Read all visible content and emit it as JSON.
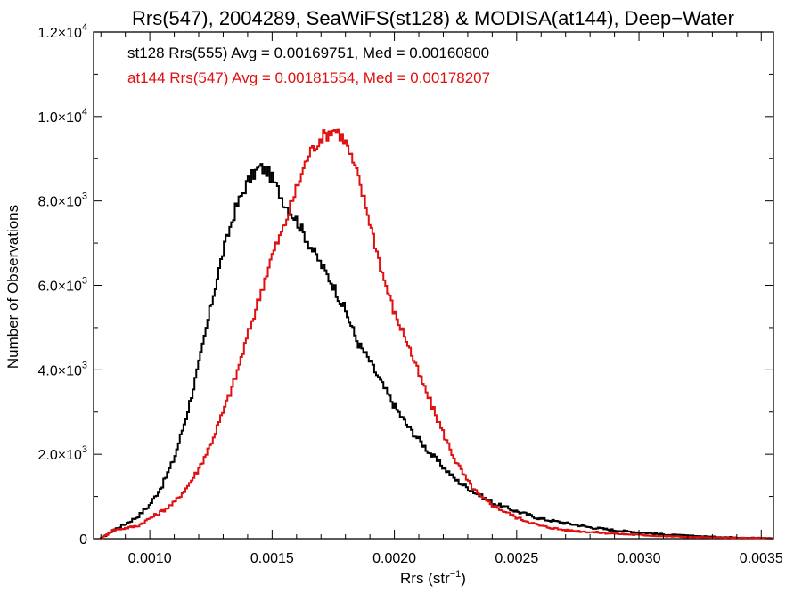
{
  "chart_data": {
    "type": "line",
    "title": "Rrs(547), 2004289, SeaWiFS(st128) & MODISA(at144), Deep−Water",
    "xlabel_main": "Rrs (str",
    "xlabel_sup": "−1",
    "xlabel_tail": ")",
    "ylabel": "Number of Observations",
    "xlim": [
      0.00077,
      0.00355
    ],
    "ylim": [
      0,
      12000
    ],
    "x_ticks": [
      {
        "value": 0.001,
        "label": "0.0010"
      },
      {
        "value": 0.0015,
        "label": "0.0015"
      },
      {
        "value": 0.002,
        "label": "0.0020"
      },
      {
        "value": 0.0025,
        "label": "0.0025"
      },
      {
        "value": 0.003,
        "label": "0.0030"
      },
      {
        "value": 0.0035,
        "label": "0.0035"
      }
    ],
    "y_ticks": [
      {
        "value": 0,
        "mant": "0",
        "exp": ""
      },
      {
        "value": 2000,
        "mant": "2.0×10",
        "exp": "3"
      },
      {
        "value": 4000,
        "mant": "4.0×10",
        "exp": "3"
      },
      {
        "value": 6000,
        "mant": "6.0×10",
        "exp": "3"
      },
      {
        "value": 8000,
        "mant": "8.0×10",
        "exp": "3"
      },
      {
        "value": 10000,
        "mant": "1.0×10",
        "exp": "4"
      },
      {
        "value": 12000,
        "mant": "1.2×10",
        "exp": "4"
      }
    ],
    "series": [
      {
        "name": "st128 Rrs(555) Avg = 0.00169751, Med = 0.00160800",
        "color": "#000000",
        "x": [
          0.0008,
          0.00085,
          0.0009,
          0.00095,
          0.001,
          0.00105,
          0.0011,
          0.00115,
          0.0012,
          0.00125,
          0.0013,
          0.00135,
          0.0014,
          0.00142,
          0.00145,
          0.00148,
          0.0015,
          0.00155,
          0.0016,
          0.00165,
          0.0017,
          0.00175,
          0.0018,
          0.00185,
          0.0019,
          0.00195,
          0.002,
          0.00205,
          0.0021,
          0.00215,
          0.0022,
          0.00225,
          0.0023,
          0.0024,
          0.0025,
          0.0026,
          0.0027,
          0.0028,
          0.0029,
          0.003,
          0.0031,
          0.0032,
          0.0033,
          0.0034,
          0.00355
        ],
        "y": [
          0,
          200,
          350,
          520,
          800,
          1250,
          1900,
          2900,
          4100,
          5500,
          6800,
          7800,
          8450,
          8600,
          8800,
          8700,
          8550,
          7950,
          7550,
          7000,
          6500,
          6000,
          5400,
          4650,
          4200,
          3650,
          3150,
          2700,
          2350,
          2000,
          1700,
          1400,
          1200,
          850,
          650,
          470,
          370,
          270,
          200,
          150,
          100,
          70,
          45,
          30,
          10
        ]
      },
      {
        "name": "at144 Rrs(547) Avg = 0.00181554, Med = 0.00178207",
        "color": "#e01010",
        "x": [
          0.0008,
          0.00085,
          0.0009,
          0.00095,
          0.001,
          0.00105,
          0.0011,
          0.00115,
          0.0012,
          0.00125,
          0.0013,
          0.00135,
          0.0014,
          0.00145,
          0.0015,
          0.00155,
          0.0016,
          0.00165,
          0.0017,
          0.00173,
          0.00175,
          0.00177,
          0.0018,
          0.00185,
          0.0019,
          0.00195,
          0.002,
          0.00205,
          0.0021,
          0.00215,
          0.0022,
          0.00225,
          0.0023,
          0.00235,
          0.0024,
          0.0025,
          0.0026,
          0.0027,
          0.0028,
          0.0029,
          0.003,
          0.0031,
          0.0032,
          0.0033,
          0.0034,
          0.00355
        ],
        "y": [
          0,
          200,
          250,
          300,
          480,
          650,
          850,
          1200,
          1650,
          2250,
          3000,
          3800,
          4800,
          5750,
          6700,
          7400,
          8300,
          9100,
          9500,
          9600,
          9700,
          9650,
          9400,
          8600,
          7500,
          6300,
          5350,
          4700,
          3900,
          3200,
          2500,
          1850,
          1350,
          1000,
          800,
          500,
          300,
          200,
          160,
          120,
          90,
          60,
          40,
          25,
          20,
          10
        ]
      }
    ]
  }
}
